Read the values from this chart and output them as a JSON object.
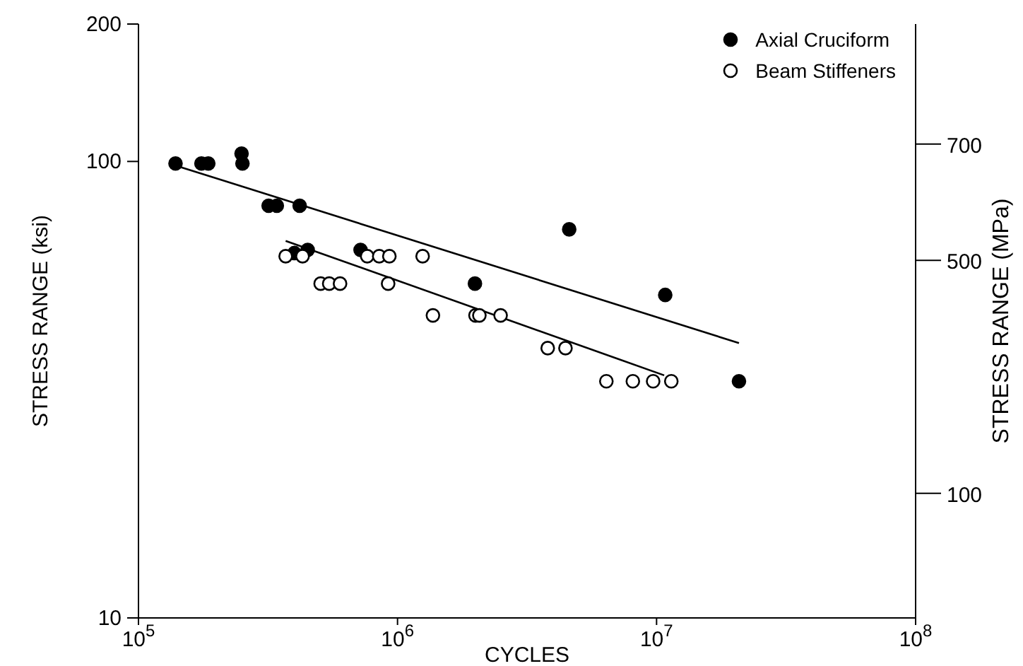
{
  "chart_data": {
    "type": "scatter",
    "xlabel": "CYCLES",
    "ylabel": "STRESS RANGE (ksi)",
    "y2label": "STRESS RANGE (MPa)",
    "log": "xy",
    "legend": "top right",
    "marker": "circle",
    "xlim": [
      100000,
      100000000
    ],
    "xticks": [
      {
        "value": 100000,
        "label": "10$^{5}$"
      },
      {
        "value": 1000000,
        "label": "10$^{6}$"
      },
      {
        "value": 10000000,
        "label": "10$^{7}$"
      },
      {
        "value": 100000000,
        "label": "10$^{8}$"
      }
    ],
    "ylim": [
      10,
      200
    ],
    "yticks": [
      10,
      100,
      200
    ],
    "y2lim": [
      -114,
      906
    ],
    "y2ticks": [
      100,
      500,
      700
    ],
    "series": [
      {
        "name": "Axial Cruciform",
        "color": "#000000",
        "x": [
          139000,
          175000,
          186000,
          250000,
          252000,
          318000,
          342000,
          419000,
          400000,
          450000,
          720000,
          1990000,
          4600000,
          10800000,
          20800000
        ],
        "values": [
          99,
          99,
          99,
          104,
          99,
          80,
          80,
          80,
          63,
          64,
          64,
          54,
          71,
          51,
          33
        ]
      },
      {
        "name": "Beam Stiffeners",
        "color": "#000000",
        "x": [
          370000,
          430000,
          764000,
          850000,
          930000,
          1250000,
          505000,
          545000,
          600000,
          920000,
          1370000,
          2000000,
          2070000,
          2500000,
          3800000,
          4450000,
          6400000,
          8100000,
          9700000,
          11400000
        ],
        "values": [
          62,
          62,
          62,
          62,
          62,
          62,
          54,
          54,
          54,
          54,
          46,
          46,
          46,
          46,
          39,
          39,
          33,
          33,
          33,
          33
        ]
      },
      {
        "type": "line",
        "color": "#000000",
        "marker": "none",
        "x": [
          139000,
          20800000
        ],
        "values": [
          98,
          40
        ]
      },
      {
        "type": "line",
        "color": "#000000",
        "marker": "none",
        "x": [
          370000,
          10700000
        ],
        "values": [
          67,
          34
        ]
      }
    ]
  }
}
